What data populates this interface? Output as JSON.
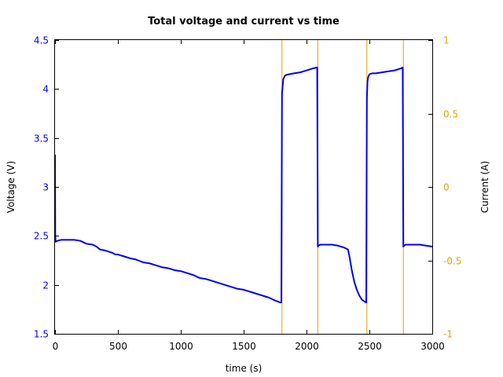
{
  "chart_data": {
    "type": "line",
    "title": "Total voltage and current vs time",
    "xlabel": "time (s)",
    "ylabel": "Voltage (V)",
    "y2label": "Current (A)",
    "xlim": [
      0,
      3000
    ],
    "ylim": [
      1.5,
      4.5
    ],
    "y2lim": [
      -1,
      1
    ],
    "grid": false,
    "legend": "none",
    "x_ticks": [
      "0",
      "500",
      "1000",
      "1500",
      "2000",
      "2500",
      "3000"
    ],
    "y_ticks": [
      "1.5",
      "2",
      "2.5",
      "3",
      "3.5",
      "4",
      "4.5"
    ],
    "y2_ticks": [
      "-1",
      "-0.5",
      "0",
      "0.5",
      "1"
    ],
    "colors": {
      "voltage": "#0000ee",
      "current": "#e6a000",
      "axes": "#000000"
    },
    "series": [
      {
        "axis": "left",
        "color": "#0000ee",
        "x": [
          0,
          2,
          5,
          20,
          50,
          100,
          150,
          200,
          250,
          300,
          330,
          360,
          400,
          450,
          480,
          500,
          550,
          600,
          640,
          700,
          750,
          800,
          850,
          900,
          950,
          1000,
          1050,
          1100,
          1150,
          1200,
          1250,
          1300,
          1350,
          1400,
          1450,
          1500,
          1550,
          1600,
          1650,
          1700,
          1750,
          1790,
          1800,
          1805,
          1815,
          1830,
          1860,
          1900,
          1950,
          2000,
          2050,
          2085,
          2090,
          2095,
          2110,
          2150,
          2200,
          2250,
          2300,
          2330,
          2340,
          2360,
          2380,
          2400,
          2420,
          2440,
          2460,
          2475,
          2480,
          2485,
          2490,
          2500,
          2520,
          2550,
          2600,
          2650,
          2700,
          2750,
          2765,
          2770,
          2775,
          2790,
          2820,
          2860,
          2900,
          2950,
          3000
        ],
        "values": [
          3.33,
          2.5,
          2.44,
          2.45,
          2.46,
          2.46,
          2.46,
          2.45,
          2.42,
          2.41,
          2.39,
          2.36,
          2.35,
          2.33,
          2.31,
          2.31,
          2.29,
          2.27,
          2.26,
          2.23,
          2.22,
          2.2,
          2.18,
          2.17,
          2.15,
          2.14,
          2.12,
          2.1,
          2.07,
          2.06,
          2.04,
          2.02,
          2.0,
          1.98,
          1.96,
          1.95,
          1.93,
          1.91,
          1.89,
          1.87,
          1.84,
          1.82,
          1.82,
          3.95,
          4.1,
          4.14,
          4.15,
          4.16,
          4.17,
          4.19,
          4.21,
          4.22,
          2.39,
          2.4,
          2.41,
          2.41,
          2.41,
          2.4,
          2.38,
          2.36,
          2.3,
          2.15,
          2.03,
          1.95,
          1.89,
          1.85,
          1.83,
          1.82,
          3.9,
          4.08,
          4.12,
          4.15,
          4.16,
          4.16,
          4.17,
          4.18,
          4.19,
          4.21,
          4.22,
          2.39,
          2.4,
          2.41,
          2.41,
          2.41,
          2.41,
          2.4,
          2.39
        ]
      },
      {
        "axis": "right",
        "color": "#e6a000",
        "x": [
          1805,
          2090,
          2480,
          2770
        ],
        "values": [
          -1,
          -1,
          -1,
          -1
        ]
      }
    ]
  }
}
